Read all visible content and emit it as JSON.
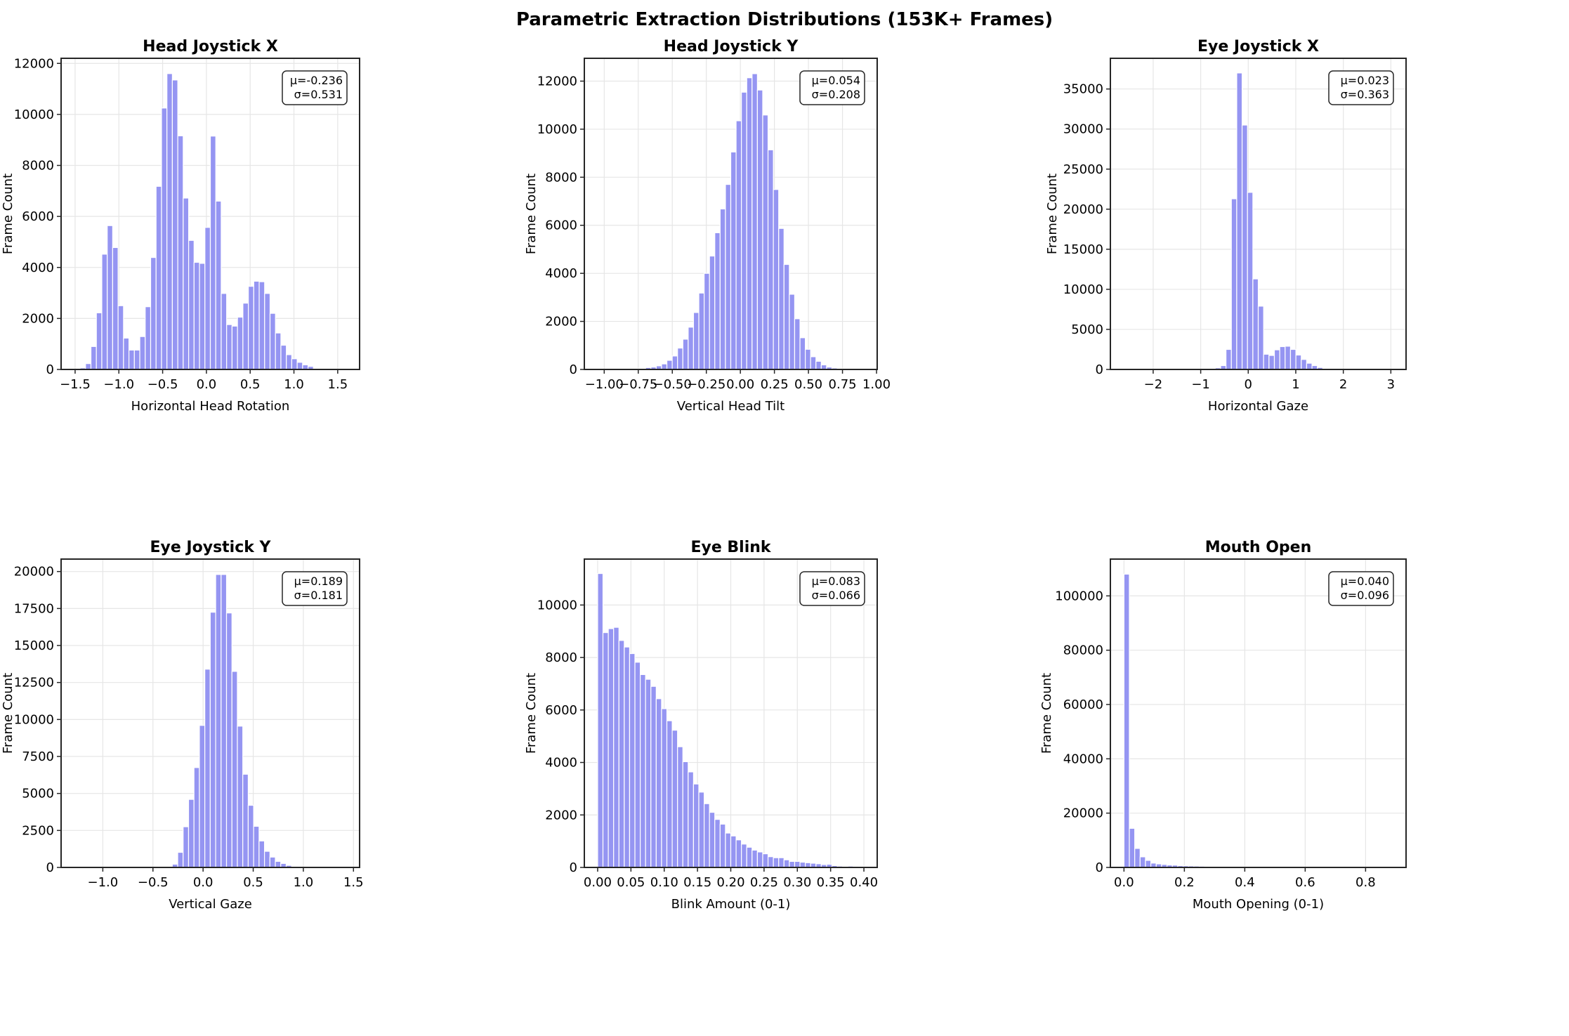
{
  "title": "Parametric Extraction Distributions (153K+ Frames)",
  "colors": {
    "bar": "#9595f2",
    "bar_edge": "#ffffff",
    "grid": "#e6e6e6",
    "axis": "#262626"
  },
  "chart_data": [
    {
      "type": "bar",
      "title": "Head Joystick X",
      "xlabel": "Horizontal Head Rotation",
      "ylabel": "Frame Count",
      "stats": [
        "μ=-0.236",
        "σ=0.531"
      ],
      "xlim": [
        -1.66,
        1.75
      ],
      "ylim": [
        0,
        12200
      ],
      "bin_start": -1.505,
      "bin_width": 0.062,
      "values": [
        5,
        60,
        230,
        900,
        2220,
        4520,
        5640,
        4780,
        2500,
        1230,
        760,
        760,
        1290,
        2460,
        4390,
        7180,
        10250,
        11600,
        11350,
        9160,
        6720,
        5060,
        4200,
        4160,
        5570,
        9150,
        6600,
        2980,
        1760,
        1700,
        2050,
        2600,
        3260,
        3460,
        3440,
        2980,
        2200,
        1430,
        950,
        580,
        420,
        280,
        180,
        120,
        40,
        15,
        8,
        5,
        3,
        2
      ],
      "xticks": [
        -1.5,
        -1.0,
        -0.5,
        0.0,
        0.5,
        1.0,
        1.5
      ],
      "xtick_labels": [
        "−1.5",
        "−1.0",
        "−0.5",
        "0.0",
        "0.5",
        "1.0",
        "1.5"
      ],
      "yticks": [
        0,
        2000,
        4000,
        6000,
        8000,
        10000,
        12000
      ],
      "ytick_labels": [
        "0",
        "2000",
        "4000",
        "6000",
        "8000",
        "10000",
        "12000"
      ],
      "grid": true
    },
    {
      "type": "bar",
      "title": "Head Joystick Y",
      "xlabel": "Vertical Head Tilt",
      "ylabel": "Frame Count",
      "stats": [
        "μ=0.054",
        "σ=0.208"
      ],
      "xlim": [
        -1.146,
        1.005
      ],
      "ylim": [
        0,
        12950
      ],
      "bin_start": -1.048,
      "bin_width": 0.0391,
      "values": [
        1,
        1,
        1,
        0,
        0,
        5,
        10,
        30,
        40,
        80,
        100,
        150,
        230,
        380,
        560,
        890,
        1260,
        1760,
        2370,
        3180,
        4000,
        4720,
        5690,
        6680,
        7700,
        9050,
        10350,
        11540,
        12140,
        12310,
        11630,
        10590,
        9140,
        7490,
        5870,
        4370,
        3130,
        2110,
        1320,
        840,
        530,
        340,
        190,
        100,
        60,
        30,
        15,
        8,
        3,
        1
      ],
      "xticks": [
        -1.0,
        -0.75,
        -0.5,
        -0.25,
        0.0,
        0.25,
        0.5,
        0.75,
        1.0
      ],
      "xtick_labels": [
        "−1.00",
        "−0.75",
        "−0.50",
        "−0.25",
        "0.00",
        "0.25",
        "0.50",
        "0.75",
        "1.00"
      ],
      "yticks": [
        0,
        2000,
        4000,
        6000,
        8000,
        10000,
        12000
      ],
      "ytick_labels": [
        "0",
        "2000",
        "4000",
        "6000",
        "8000",
        "10000",
        "12000"
      ],
      "grid": true
    },
    {
      "type": "bar",
      "title": "Eye Joystick X",
      "xlabel": "Horizontal Gaze",
      "ylabel": "Frame Count",
      "stats": [
        "μ=0.023",
        "σ=0.363"
      ],
      "xlim": [
        -2.9,
        3.32
      ],
      "ylim": [
        0,
        38830
      ],
      "bin_start": -2.617,
      "bin_width": 0.1131,
      "values": [
        1,
        0,
        0,
        0,
        0,
        0,
        0,
        0,
        1,
        1,
        2,
        5,
        8,
        10,
        30,
        80,
        100,
        200,
        480,
        2500,
        21300,
        37000,
        30500,
        22100,
        11300,
        7900,
        1900,
        1750,
        2450,
        2850,
        2900,
        2500,
        1800,
        1250,
        780,
        480,
        250,
        100,
        40,
        15,
        8,
        5,
        3,
        2,
        1,
        1,
        0,
        0,
        0,
        1
      ],
      "xticks": [
        -2,
        -1,
        0,
        1,
        2,
        3
      ],
      "xtick_labels": [
        "−2",
        "−1",
        "0",
        "1",
        "2",
        "3"
      ],
      "yticks": [
        0,
        5000,
        10000,
        15000,
        20000,
        25000,
        30000,
        35000
      ],
      "ytick_labels": [
        "0",
        "5000",
        "10000",
        "15000",
        "20000",
        "25000",
        "30000",
        "35000"
      ],
      "grid": true
    },
    {
      "type": "bar",
      "title": "Eye Joystick Y",
      "xlabel": "Vertical Gaze",
      "ylabel": "Frame Count",
      "stats": [
        "μ=0.189",
        "σ=0.181"
      ],
      "xlim": [
        -1.416,
        1.561
      ],
      "ylim": [
        0,
        20840
      ],
      "bin_start": -1.281,
      "bin_width": 0.0541,
      "values": [
        1,
        0,
        0,
        0,
        0,
        0,
        0,
        0,
        0,
        0,
        0,
        1,
        1,
        2,
        3,
        5,
        15,
        50,
        220,
        1020,
        2750,
        4600,
        6750,
        9600,
        13400,
        17250,
        19800,
        19800,
        17200,
        13250,
        9550,
        6300,
        4200,
        2780,
        1790,
        1090,
        700,
        410,
        270,
        140,
        60,
        30,
        15,
        8,
        4,
        2,
        1,
        1,
        0,
        1
      ],
      "xticks": [
        -1.0,
        -0.5,
        0.0,
        0.5,
        1.0,
        1.5
      ],
      "xtick_labels": [
        "−1.0",
        "−0.5",
        "0.0",
        "0.5",
        "1.0",
        "1.5"
      ],
      "yticks": [
        0,
        2500,
        5000,
        7500,
        10000,
        12500,
        15000,
        17500,
        20000
      ],
      "ytick_labels": [
        "0",
        "2500",
        "5000",
        "7500",
        "10000",
        "12500",
        "15000",
        "17500",
        "20000"
      ],
      "grid": true
    },
    {
      "type": "bar",
      "title": "Eye Blink",
      "xlabel": "Blink Amount (0-1)",
      "ylabel": "Frame Count",
      "stats": [
        "μ=0.083",
        "σ=0.066"
      ],
      "xlim": [
        -0.02,
        0.42
      ],
      "ylim": [
        0,
        11750
      ],
      "bin_start": 0.0,
      "bin_width": 0.008,
      "values": [
        11200,
        8950,
        9100,
        9150,
        8650,
        8400,
        8150,
        7820,
        7350,
        7170,
        6900,
        6430,
        6050,
        5590,
        5230,
        4600,
        4030,
        3640,
        3180,
        2870,
        2430,
        2100,
        1830,
        1650,
        1310,
        1200,
        1050,
        890,
        770,
        660,
        590,
        520,
        410,
        370,
        370,
        290,
        230,
        230,
        200,
        180,
        160,
        140,
        110,
        120,
        70,
        50,
        40,
        50,
        40,
        30
      ],
      "xticks": [
        0.0,
        0.05,
        0.1,
        0.15,
        0.2,
        0.25,
        0.3,
        0.35,
        0.4
      ],
      "xtick_labels": [
        "0.00",
        "0.05",
        "0.10",
        "0.15",
        "0.20",
        "0.25",
        "0.30",
        "0.35",
        "0.40"
      ],
      "yticks": [
        0,
        2000,
        4000,
        6000,
        8000,
        10000
      ],
      "ytick_labels": [
        "0",
        "2000",
        "4000",
        "6000",
        "8000",
        "10000"
      ],
      "grid": true
    },
    {
      "type": "bar",
      "title": "Mouth Open",
      "xlabel": "Mouth Opening (0-1)",
      "ylabel": "Frame Count",
      "stats": [
        "μ=0.040",
        "σ=0.096"
      ],
      "xlim": [
        -0.045,
        0.934
      ],
      "ylim": [
        0,
        113550
      ],
      "bin_start": 0.0,
      "bin_width": 0.0178,
      "values": [
        108000,
        14400,
        7000,
        3900,
        2600,
        1600,
        1300,
        1100,
        900,
        850,
        650,
        600,
        550,
        500,
        450,
        400,
        380,
        350,
        300,
        280,
        240,
        200,
        180,
        160,
        120,
        100,
        80,
        60,
        50,
        40,
        30,
        25,
        20,
        15,
        12,
        10,
        8,
        6,
        5,
        4,
        3,
        3,
        2,
        2,
        1,
        1,
        1,
        1,
        1,
        1
      ],
      "xticks": [
        0.0,
        0.2,
        0.4,
        0.6,
        0.8
      ],
      "xtick_labels": [
        "0.0",
        "0.2",
        "0.4",
        "0.6",
        "0.8"
      ],
      "yticks": [
        0,
        20000,
        40000,
        60000,
        80000,
        100000
      ],
      "ytick_labels": [
        "0",
        "20000",
        "40000",
        "60000",
        "80000",
        "100000"
      ],
      "grid": true
    }
  ]
}
